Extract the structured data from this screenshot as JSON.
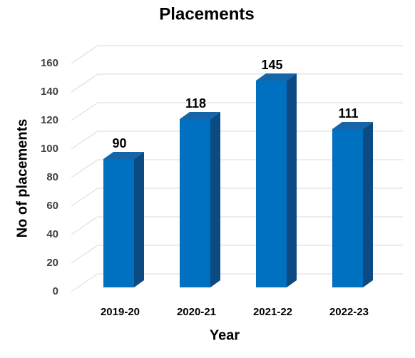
{
  "chart_data": {
    "type": "bar3d",
    "title": "Placements",
    "x_label": "Year",
    "y_label": "No of placements",
    "categories": [
      "2019-20",
      "2020-21",
      "2021-22",
      "2022-23"
    ],
    "values": [
      90,
      118,
      145,
      111
    ],
    "color": "#0070c0",
    "ylim": [
      0,
      160
    ],
    "yticks": [
      0,
      20,
      40,
      60,
      80,
      100,
      120,
      140,
      160
    ],
    "grid": true
  }
}
